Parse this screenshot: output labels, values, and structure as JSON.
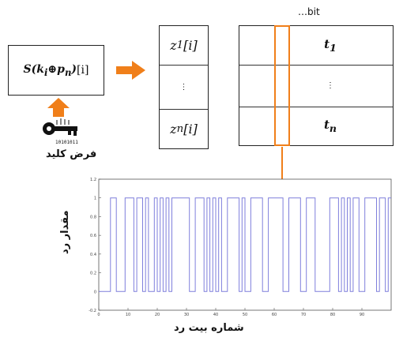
{
  "formula_box": {
    "formula": "S(k",
    "formula_sub1": "i",
    "formula_op": "⊕p",
    "formula_sub2": "n",
    "formula_close": ")",
    "suffix": "[i]"
  },
  "z_column": {
    "top": {
      "base": "z",
      "sub": "1",
      "idx": "[i]"
    },
    "middle": "⋮",
    "bottom": {
      "base": "z",
      "sub": "n",
      "idx": "[i]"
    }
  },
  "t_table": {
    "header": "…bit",
    "top": {
      "base": "t",
      "sub": "1"
    },
    "middle": "⋮",
    "bottom": {
      "base": "t",
      "sub": "n"
    }
  },
  "key": {
    "label": "فرض کلید",
    "icon": "key-icon",
    "binary_text": "10101011"
  },
  "colors": {
    "accent": "#f07f1a",
    "signal": "#7f7fdc"
  },
  "chart_data": {
    "type": "line",
    "step": true,
    "title": "",
    "xlabel": "شماره بیت رد",
    "ylabel": "مقدار رد",
    "xlim": [
      0,
      100
    ],
    "ylim": [
      -0.2,
      1.2
    ],
    "xticks": [
      0,
      10,
      20,
      30,
      40,
      50,
      60,
      70,
      80,
      90
    ],
    "yticks": [
      -0.2,
      0,
      0.2,
      0.4,
      0.6,
      0.8,
      1,
      1.2
    ],
    "grid": false,
    "series": [
      {
        "values": [
          0,
          0,
          0,
          0,
          1,
          1,
          0,
          0,
          0,
          1,
          1,
          1,
          0,
          1,
          1,
          0,
          1,
          0,
          0,
          1,
          0,
          1,
          0,
          1,
          0,
          1,
          1,
          1,
          1,
          1,
          1,
          0,
          0,
          1,
          1,
          1,
          0,
          1,
          0,
          1,
          0,
          1,
          0,
          0,
          1,
          1,
          1,
          1,
          0,
          1,
          0,
          0,
          1,
          1,
          1,
          1,
          0,
          0,
          1,
          1,
          1,
          1,
          1,
          0,
          0,
          1,
          1,
          1,
          1,
          0,
          0,
          1,
          1,
          1,
          0,
          0,
          0,
          0,
          0,
          1,
          1,
          1,
          0,
          1,
          0,
          1,
          0,
          1,
          1,
          0,
          0,
          1,
          1,
          1,
          1,
          0,
          1,
          1,
          0,
          1
        ]
      }
    ]
  }
}
